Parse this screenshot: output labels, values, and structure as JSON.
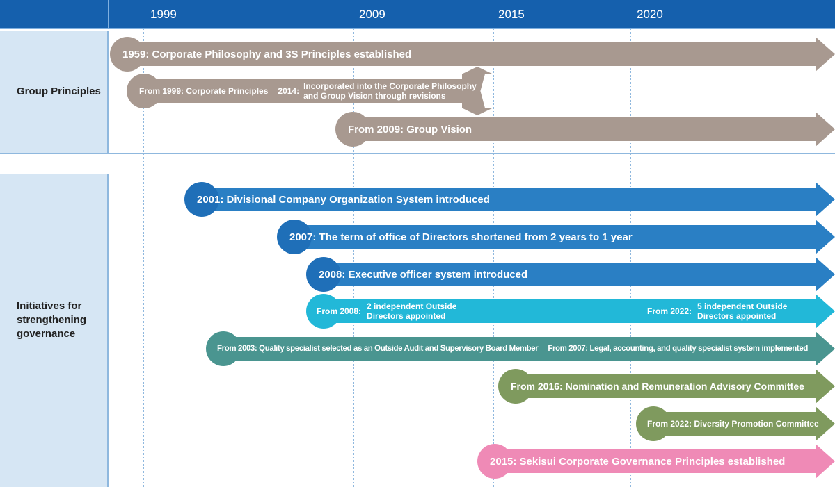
{
  "header": {
    "years": [
      "1999",
      "2009",
      "2015",
      "2020"
    ]
  },
  "sections": {
    "group_principles": "Group Principles",
    "governance": "Initiatives for strengthening governance"
  },
  "arrows": {
    "a1": "1959: Corporate Philosophy and 3S Principles established",
    "a2": "From 1999: Corporate Principles",
    "a2b_label": "2014:",
    "a2b_line1": "Incorporated into the Corporate Philosophy",
    "a2b_line2": "and Group Vision through revisions",
    "a3": "From 2009: Group Vision",
    "b1": "2001: Divisional Company Organization System introduced",
    "b2": "2007: The term of office of Directors shortened from 2 years to 1 year",
    "b3": "2008: Executive officer system introduced",
    "b4_label": "From 2008:",
    "b4_line1": "2 independent Outside",
    "b4_line2": "Directors appointed",
    "b4b_label": "From 2022:",
    "b4b_line1": "5 independent Outside",
    "b4b_line2": "Directors appointed",
    "b5": "From 2003: Quality specialist selected as an Outside Audit and Supervisory Board Member",
    "b5b": "From 2007:  Legal, accounting, and quality specialist system implemented",
    "b6": "From 2016: Nomination and Remuneration Advisory Committee",
    "b7": "From 2022: Diversity Promotion Committee",
    "b8": "2015: Sekisui Corporate Governance Principles established"
  },
  "colors": {
    "header": "#1560ad",
    "taupe": "#a89990",
    "blue": "#2a7fc4",
    "cyan": "#22b8d8",
    "teal": "#4a9590",
    "olive": "#7f9a5e",
    "pink": "#ef8ab6"
  }
}
